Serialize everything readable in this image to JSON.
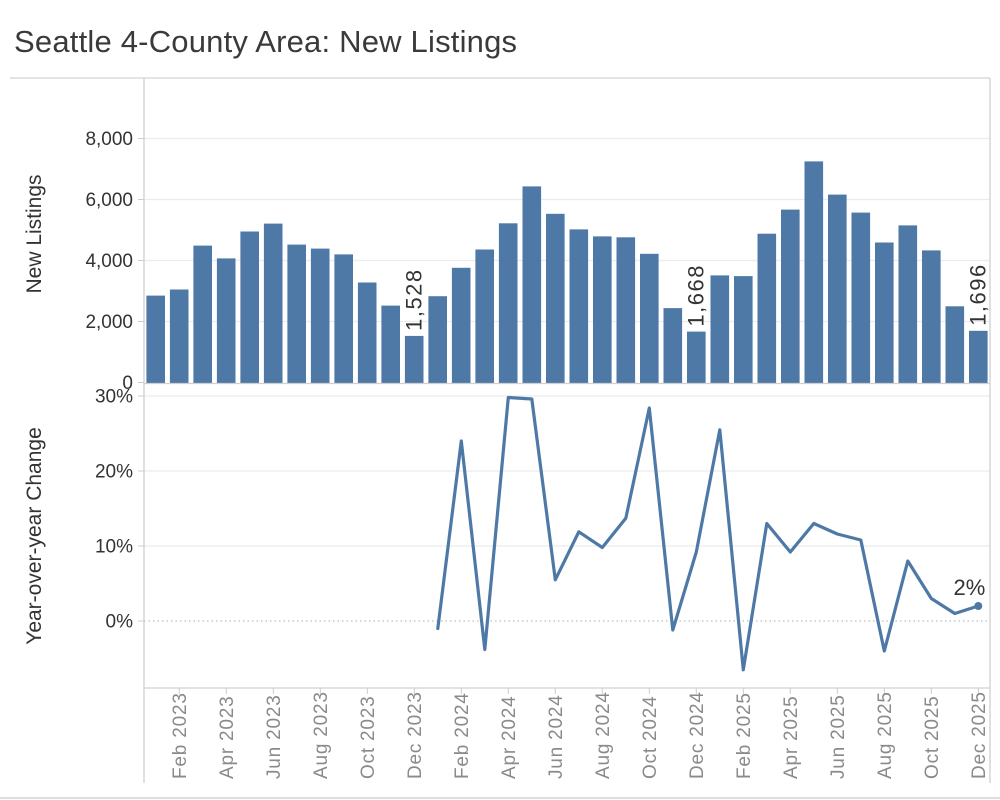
{
  "title": "Seattle 4-County Area: New Listings",
  "colors": {
    "bar": "#4e79a7",
    "line": "#4e79a7",
    "axis_text": "#333333",
    "x_label_text": "#8a8a8a",
    "grid": "#ececec",
    "zero_line": "#bdbdbd",
    "border": "#cccccc",
    "annotation": "#333333",
    "title_text": "#3a3a3a"
  },
  "x_axis": {
    "tick_labels": [
      "Feb 2023",
      "Apr 2023",
      "Jun 2023",
      "Aug 2023",
      "Oct 2023",
      "Dec 2023",
      "Feb 2024",
      "Apr 2024",
      "Jun 2024",
      "Aug 2024",
      "Oct 2024",
      "Dec 2024",
      "Feb 2025",
      "Apr 2025",
      "Jun 2025",
      "Aug 2025",
      "Oct 2025",
      "Dec 2025"
    ]
  },
  "chart_data": [
    {
      "type": "bar",
      "name": "new-listings-by-month",
      "ylabel": "New Listings",
      "ylim": [
        0,
        9750
      ],
      "yticks": [
        0,
        2000,
        4000,
        6000,
        8000
      ],
      "ytick_labels": [
        "0",
        "2,000",
        "4,000",
        "6,000",
        "8,000"
      ],
      "grid": true,
      "legend": "none",
      "categories": [
        "Jan 2023",
        "Feb 2023",
        "Mar 2023",
        "Apr 2023",
        "May 2023",
        "Jun 2023",
        "Jul 2023",
        "Aug 2023",
        "Sep 2023",
        "Oct 2023",
        "Nov 2023",
        "Dec 2023",
        "Jan 2024",
        "Feb 2024",
        "Mar 2024",
        "Apr 2024",
        "May 2024",
        "Jun 2024",
        "Jul 2024",
        "Aug 2024",
        "Sep 2024",
        "Oct 2024",
        "Nov 2024",
        "Dec 2024",
        "Jan 2025",
        "Feb 2025",
        "Mar 2025",
        "Apr 2025",
        "May 2025",
        "Jun 2025",
        "Jul 2025",
        "Aug 2025",
        "Sep 2025",
        "Oct 2025",
        "Nov 2025",
        "Dec 2025"
      ],
      "values": [
        2850,
        3050,
        4490,
        4070,
        4950,
        5210,
        4520,
        4390,
        4200,
        3280,
        2520,
        1528,
        2830,
        3760,
        4360,
        5220,
        6430,
        5530,
        5020,
        4790,
        4760,
        4220,
        2440,
        1668,
        3510,
        3490,
        4880,
        5670,
        7250,
        6160,
        5570,
        4590,
        5150,
        4330,
        2500,
        1696
      ],
      "annotations": [
        {
          "category": "Dec 2023",
          "text": "1,528"
        },
        {
          "category": "Dec 2024",
          "text": "1,668"
        },
        {
          "category": "Dec 2025",
          "text": "1,696"
        }
      ]
    },
    {
      "type": "line",
      "name": "year-over-year-change",
      "ylabel": "Year-over-year Change",
      "ylim": [
        -8.8,
        31.6
      ],
      "yticks": [
        0,
        10,
        20,
        30
      ],
      "ytick_labels": [
        "0%",
        "10%",
        "20%",
        "30%"
      ],
      "zero_line": "dotted",
      "grid": true,
      "legend": "none",
      "categories": [
        "Jan 2023",
        "Feb 2023",
        "Mar 2023",
        "Apr 2023",
        "May 2023",
        "Jun 2023",
        "Jul 2023",
        "Aug 2023",
        "Sep 2023",
        "Oct 2023",
        "Nov 2023",
        "Dec 2023",
        "Jan 2024",
        "Feb 2024",
        "Mar 2024",
        "Apr 2024",
        "May 2024",
        "Jun 2024",
        "Jul 2024",
        "Aug 2024",
        "Sep 2024",
        "Oct 2024",
        "Nov 2024",
        "Dec 2024",
        "Jan 2025",
        "Feb 2025",
        "Mar 2025",
        "Apr 2025",
        "May 2025",
        "Jun 2025",
        "Jul 2025",
        "Aug 2025",
        "Sep 2025",
        "Oct 2025",
        "Nov 2025",
        "Dec 2025"
      ],
      "values": [
        null,
        null,
        null,
        null,
        null,
        null,
        null,
        null,
        null,
        null,
        null,
        null,
        -1.0,
        24.0,
        -3.8,
        29.8,
        29.6,
        5.5,
        11.9,
        9.8,
        13.7,
        28.4,
        -1.2,
        9.2,
        25.5,
        -6.5,
        13.0,
        9.2,
        13.0,
        11.6,
        10.8,
        -4.0,
        8.0,
        3.0,
        1.0,
        2.0
      ],
      "end_marker": true,
      "annotations": [
        {
          "category": "Dec 2025",
          "text": "2%"
        }
      ]
    }
  ]
}
